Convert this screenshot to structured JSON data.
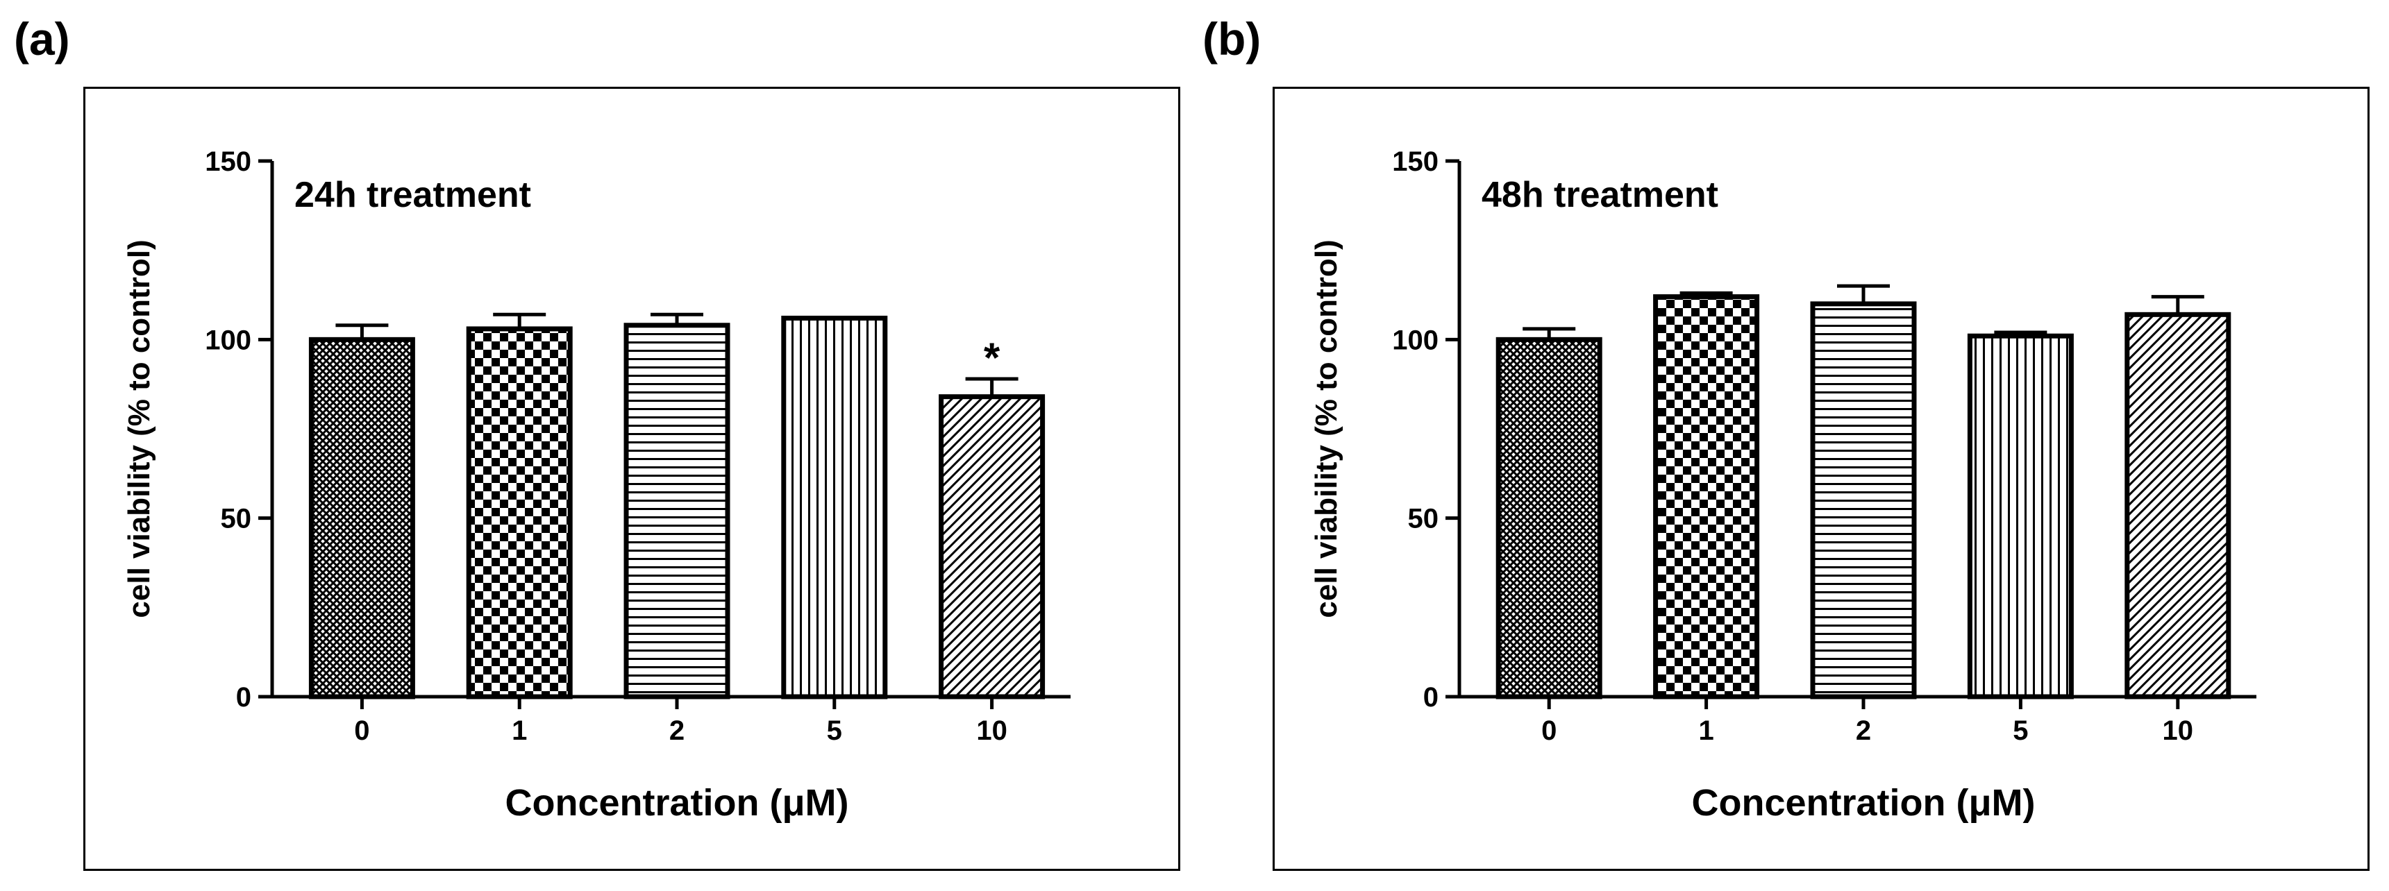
{
  "panels": [
    {
      "label": "(a)"
    },
    {
      "label": "(b)"
    }
  ],
  "colors": {
    "ink": "#000000",
    "background": "#ffffff"
  },
  "chart_data": [
    {
      "type": "bar",
      "title": "24h treatment",
      "xlabel": "Concentration (μM)",
      "ylabel": "cell viability (% to control)",
      "categories": [
        "0",
        "1",
        "2",
        "5",
        "10"
      ],
      "patterns": [
        "crosshatch",
        "checker",
        "horizontal-lines",
        "vertical-lines",
        "diagonal-lines"
      ],
      "values": [
        100,
        103,
        104,
        106,
        84
      ],
      "errors": [
        4,
        4,
        3,
        0,
        5
      ],
      "annotations": [
        null,
        null,
        null,
        null,
        "*"
      ],
      "ylim": [
        0,
        150
      ],
      "yticks": [
        "0",
        "50",
        "100",
        "150"
      ],
      "ytick_values": [
        0,
        50,
        100,
        150
      ]
    },
    {
      "type": "bar",
      "title": "48h treatment",
      "xlabel": "Concentration (μM)",
      "ylabel": "cell viability (% to control)",
      "categories": [
        "0",
        "1",
        "2",
        "5",
        "10"
      ],
      "patterns": [
        "crosshatch",
        "checker",
        "horizontal-lines",
        "vertical-lines",
        "diagonal-lines"
      ],
      "values": [
        100,
        112,
        110,
        101,
        107
      ],
      "errors": [
        3,
        1,
        5,
        1,
        5
      ],
      "annotations": [
        null,
        null,
        null,
        null,
        null
      ],
      "ylim": [
        0,
        150
      ],
      "yticks": [
        "0",
        "50",
        "100",
        "150"
      ],
      "ytick_values": [
        0,
        50,
        100,
        150
      ]
    }
  ]
}
